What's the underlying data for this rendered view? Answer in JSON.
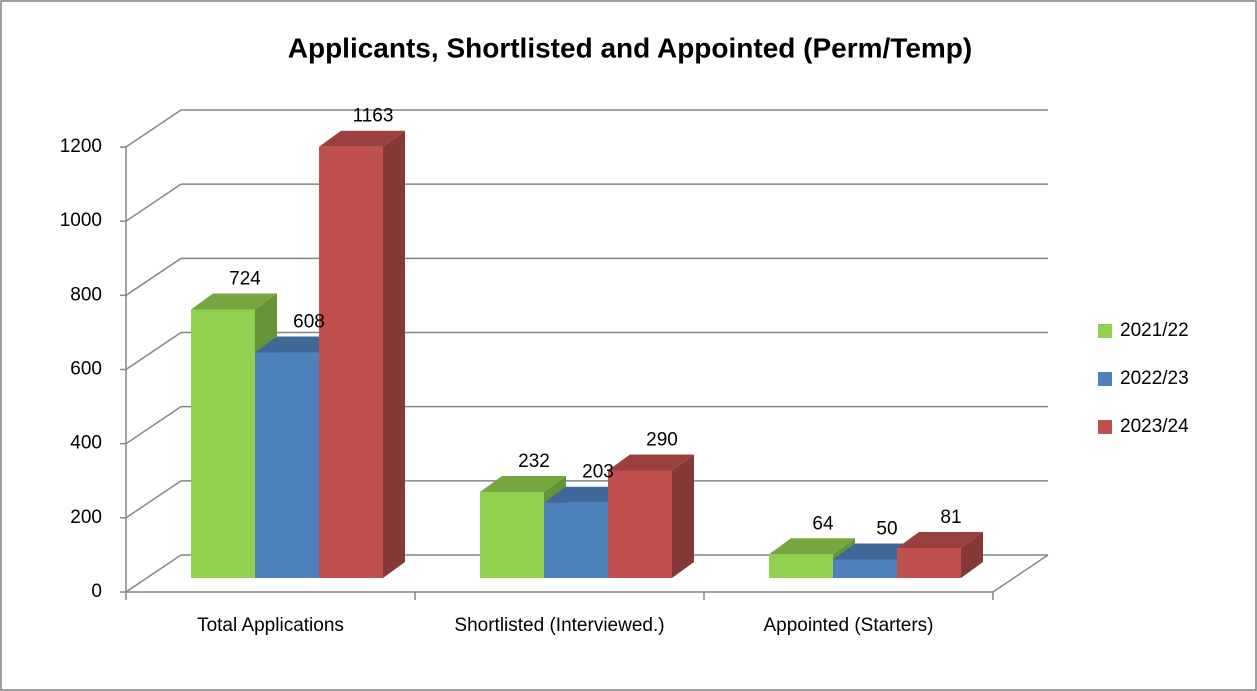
{
  "chart_data": {
    "type": "bar3d",
    "title": "Applicants, Shortlisted and Appointed (Perm/Temp)",
    "categories": [
      "Total Applications",
      "Shortlisted (Interviewed.)",
      "Appointed (Starters)"
    ],
    "series": [
      {
        "name": "2021/22",
        "color": "#92d050",
        "values": [
          724,
          232,
          64
        ]
      },
      {
        "name": "2022/23",
        "color": "#4f81bd",
        "values": [
          608,
          203,
          50
        ]
      },
      {
        "name": "2023/24",
        "color": "#c0504d",
        "values": [
          1163,
          290,
          81
        ]
      }
    ],
    "ylim": [
      0,
      1200
    ],
    "yticks": [
      0,
      200,
      400,
      600,
      800,
      1000,
      1200
    ],
    "grid": true,
    "legend": "right"
  }
}
